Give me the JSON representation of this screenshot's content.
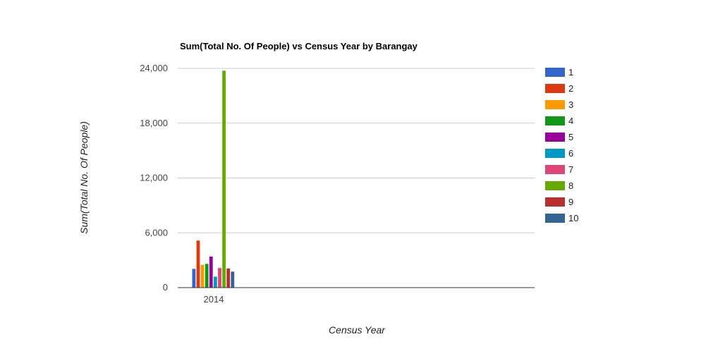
{
  "chart_data": {
    "type": "bar",
    "title": "Sum(Total No. Of People) vs Census Year by Barangay",
    "xlabel": "Census Year",
    "ylabel": "Sum(Total No. Of People)",
    "categories": [
      "2014"
    ],
    "ylim": [
      0,
      24000
    ],
    "yticks": [
      "0",
      "6,000",
      "12,000",
      "18,000",
      "24,000"
    ],
    "ytick_values": [
      0,
      6000,
      12000,
      18000,
      24000
    ],
    "grid": true,
    "legend_position": "right",
    "series": [
      {
        "name": "1",
        "color": "#3366cc",
        "values": [
          2050
        ]
      },
      {
        "name": "2",
        "color": "#dc3912",
        "values": [
          5150
        ]
      },
      {
        "name": "3",
        "color": "#ff9900",
        "values": [
          2500
        ]
      },
      {
        "name": "4",
        "color": "#109618",
        "values": [
          2600
        ]
      },
      {
        "name": "5",
        "color": "#990099",
        "values": [
          3400
        ]
      },
      {
        "name": "6",
        "color": "#0099c6",
        "values": [
          1200
        ]
      },
      {
        "name": "7",
        "color": "#dd4477",
        "values": [
          2150
        ]
      },
      {
        "name": "8",
        "color": "#66aa00",
        "values": [
          23750
        ]
      },
      {
        "name": "9",
        "color": "#b82e2e",
        "values": [
          2100
        ]
      },
      {
        "name": "10",
        "color": "#316395",
        "values": [
          1750
        ]
      }
    ]
  }
}
